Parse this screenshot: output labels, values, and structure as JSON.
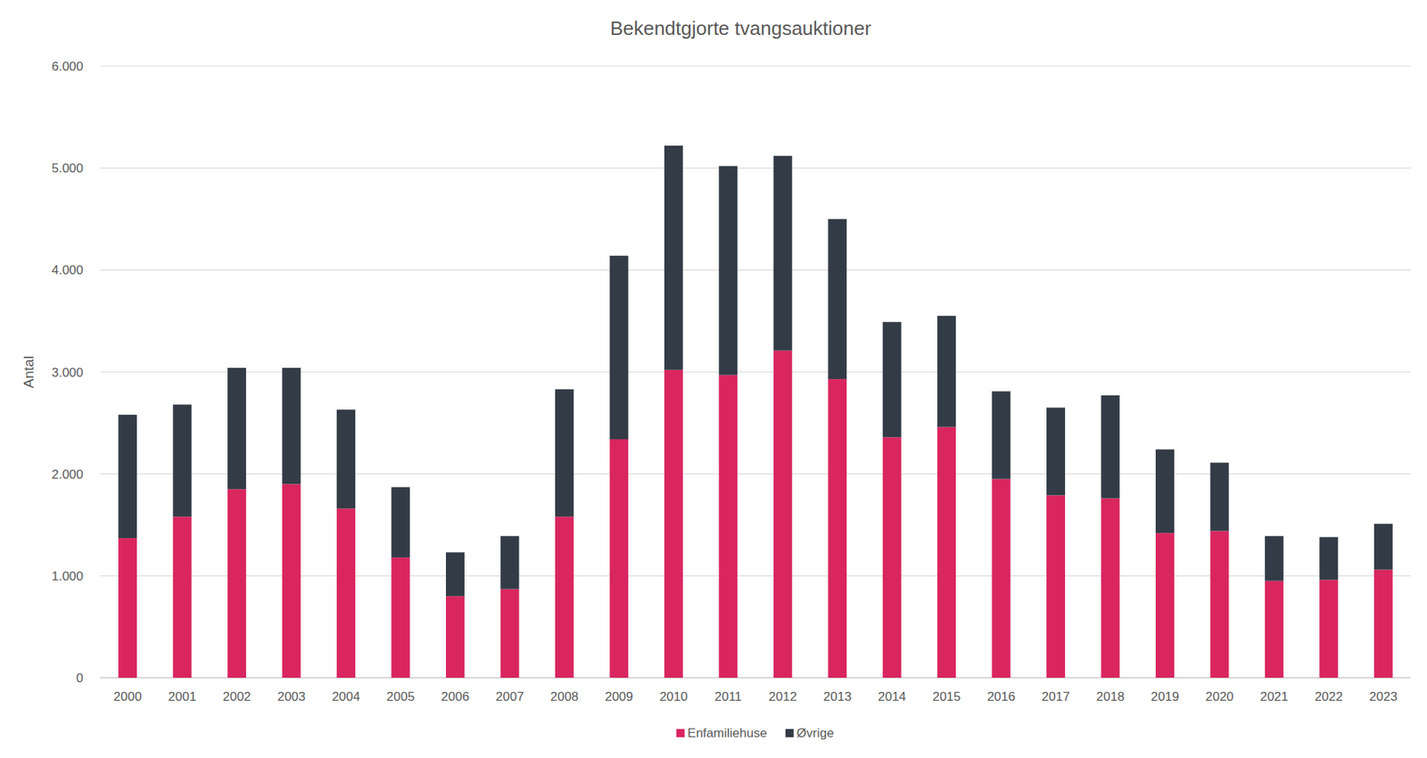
{
  "chart_data": {
    "type": "bar",
    "title": "Bekendtgjorte tvangsauktioner",
    "y_label": "Antal",
    "categories": [
      "2000",
      "2001",
      "2002",
      "2003",
      "2004",
      "2005",
      "2006",
      "2007",
      "2008",
      "2009",
      "2010",
      "2011",
      "2012",
      "2013",
      "2014",
      "2015",
      "2016",
      "2017",
      "2018",
      "2019",
      "2020",
      "2021",
      "2022",
      "2023"
    ],
    "series": [
      {
        "name": "Enfamiliehuse",
        "color": "#d9265f",
        "values": [
          1370,
          1580,
          1850,
          1900,
          1660,
          1180,
          800,
          870,
          1580,
          2340,
          3020,
          2970,
          3210,
          2930,
          2360,
          2460,
          1950,
          1790,
          1760,
          1420,
          1440,
          950,
          960,
          1060
        ]
      },
      {
        "name": "Øvrige",
        "color": "#333c46",
        "values": [
          1210,
          1100,
          1190,
          1140,
          970,
          690,
          430,
          520,
          1250,
          1800,
          2200,
          2050,
          1910,
          1570,
          1130,
          1090,
          860,
          860,
          1010,
          820,
          670,
          440,
          420,
          450
        ]
      }
    ],
    "stacked": true,
    "ylim": [
      0,
      6000
    ],
    "yticks": [
      0,
      {
        "value": 1000,
        "label": "1.000"
      },
      {
        "value": 2000,
        "label": "2.000"
      },
      {
        "value": 3000,
        "label": "3.000"
      },
      {
        "value": 4000,
        "label": "4.000"
      },
      {
        "value": 5000,
        "label": "5.000"
      },
      {
        "value": 6000,
        "label": "6.000"
      }
    ],
    "grid": true,
    "legend": "bottom"
  }
}
